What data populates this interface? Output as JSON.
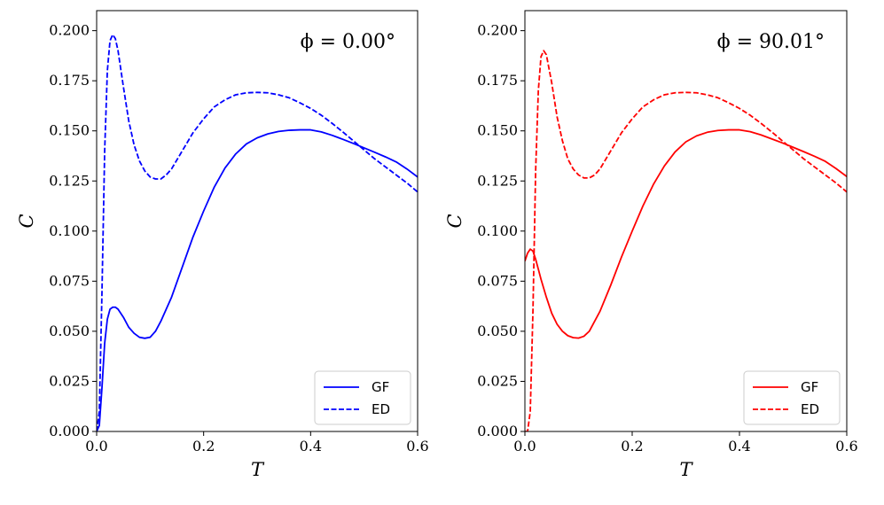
{
  "chart_data": [
    {
      "type": "line",
      "annotation": "ϕ = 0.00°",
      "xlabel": "T",
      "ylabel": "C",
      "xlim": [
        0.0,
        0.6
      ],
      "ylim": [
        0.0,
        0.21
      ],
      "xticks": [
        "0.0",
        "0.2",
        "0.4",
        "0.6"
      ],
      "yticks": [
        "0.000",
        "0.025",
        "0.050",
        "0.075",
        "0.100",
        "0.125",
        "0.150",
        "0.175",
        "0.200"
      ],
      "legend_position": "lower-right",
      "grid": false,
      "color": "#0000ff",
      "series": [
        {
          "name": "GF",
          "style": "solid",
          "x": [
            0.0,
            0.005,
            0.01,
            0.015,
            0.02,
            0.025,
            0.03,
            0.035,
            0.04,
            0.05,
            0.06,
            0.07,
            0.08,
            0.09,
            0.1,
            0.11,
            0.12,
            0.14,
            0.16,
            0.18,
            0.2,
            0.22,
            0.24,
            0.26,
            0.28,
            0.3,
            0.32,
            0.34,
            0.36,
            0.38,
            0.4,
            0.42,
            0.44,
            0.46,
            0.48,
            0.5,
            0.52,
            0.54,
            0.56,
            0.58,
            0.6
          ],
          "values": [
            0.0,
            0.003,
            0.022,
            0.044,
            0.056,
            0.061,
            0.062,
            0.062,
            0.061,
            0.057,
            0.052,
            0.049,
            0.047,
            0.0465,
            0.047,
            0.05,
            0.055,
            0.067,
            0.082,
            0.097,
            0.11,
            0.122,
            0.1315,
            0.1385,
            0.1435,
            0.1465,
            0.1485,
            0.1497,
            0.1503,
            0.1505,
            0.1505,
            0.1495,
            0.1478,
            0.1458,
            0.1437,
            0.1415,
            0.1393,
            0.137,
            0.1345,
            0.131,
            0.127
          ]
        },
        {
          "name": "ED",
          "style": "dashed",
          "x": [
            0.0,
            0.005,
            0.01,
            0.015,
            0.02,
            0.025,
            0.03,
            0.035,
            0.04,
            0.05,
            0.06,
            0.07,
            0.08,
            0.09,
            0.1,
            0.11,
            0.12,
            0.13,
            0.14,
            0.16,
            0.18,
            0.2,
            0.22,
            0.24,
            0.26,
            0.28,
            0.3,
            0.32,
            0.34,
            0.36,
            0.38,
            0.4,
            0.42,
            0.44,
            0.46,
            0.48,
            0.5,
            0.52,
            0.54,
            0.56,
            0.58,
            0.6
          ],
          "values": [
            0.0,
            0.01,
            0.07,
            0.14,
            0.18,
            0.195,
            0.198,
            0.196,
            0.19,
            0.172,
            0.155,
            0.143,
            0.135,
            0.13,
            0.127,
            0.126,
            0.126,
            0.128,
            0.131,
            0.14,
            0.149,
            0.156,
            0.162,
            0.1655,
            0.168,
            0.169,
            0.1692,
            0.169,
            0.168,
            0.1665,
            0.164,
            0.1612,
            0.1578,
            0.1538,
            0.1495,
            0.145,
            0.1405,
            0.136,
            0.132,
            0.128,
            0.124,
            0.1195
          ]
        }
      ]
    },
    {
      "type": "line",
      "annotation": "ϕ = 90.01°",
      "xlabel": "T",
      "ylabel": "C",
      "xlim": [
        0.0,
        0.6
      ],
      "ylim": [
        0.0,
        0.21
      ],
      "xticks": [
        "0.0",
        "0.2",
        "0.4",
        "0.6"
      ],
      "yticks": [
        "0.000",
        "0.025",
        "0.050",
        "0.075",
        "0.100",
        "0.125",
        "0.150",
        "0.175",
        "0.200"
      ],
      "legend_position": "lower-right",
      "grid": false,
      "color": "#ff0000",
      "series": [
        {
          "name": "GF",
          "style": "solid",
          "x": [
            0.0,
            0.005,
            0.01,
            0.015,
            0.02,
            0.025,
            0.03,
            0.04,
            0.05,
            0.06,
            0.07,
            0.08,
            0.09,
            0.1,
            0.11,
            0.12,
            0.14,
            0.16,
            0.18,
            0.2,
            0.22,
            0.24,
            0.26,
            0.28,
            0.3,
            0.32,
            0.34,
            0.36,
            0.38,
            0.4,
            0.42,
            0.44,
            0.46,
            0.48,
            0.5,
            0.52,
            0.54,
            0.56,
            0.58,
            0.6
          ],
          "values": [
            0.085,
            0.089,
            0.091,
            0.09,
            0.086,
            0.081,
            0.076,
            0.067,
            0.059,
            0.0535,
            0.05,
            0.0478,
            0.0468,
            0.0466,
            0.0475,
            0.05,
            0.06,
            0.073,
            0.087,
            0.1,
            0.1125,
            0.1235,
            0.1325,
            0.1395,
            0.1445,
            0.1475,
            0.1493,
            0.1502,
            0.1505,
            0.1505,
            0.1496,
            0.148,
            0.146,
            0.144,
            0.1418,
            0.1396,
            0.1373,
            0.1348,
            0.1312,
            0.1272
          ]
        },
        {
          "name": "ED",
          "style": "dashed",
          "x": [
            0.0,
            0.005,
            0.01,
            0.015,
            0.02,
            0.025,
            0.03,
            0.035,
            0.04,
            0.05,
            0.06,
            0.07,
            0.08,
            0.09,
            0.1,
            0.11,
            0.12,
            0.13,
            0.14,
            0.16,
            0.18,
            0.2,
            0.22,
            0.24,
            0.26,
            0.28,
            0.3,
            0.32,
            0.34,
            0.36,
            0.38,
            0.4,
            0.42,
            0.44,
            0.46,
            0.48,
            0.5,
            0.52,
            0.54,
            0.56,
            0.58,
            0.6
          ],
          "values": [
            0.0,
            0.0,
            0.01,
            0.06,
            0.13,
            0.17,
            0.187,
            0.19,
            0.188,
            0.174,
            0.157,
            0.145,
            0.136,
            0.131,
            0.128,
            0.1265,
            0.1265,
            0.128,
            0.131,
            0.14,
            0.149,
            0.156,
            0.162,
            0.1655,
            0.168,
            0.169,
            0.1692,
            0.169,
            0.168,
            0.1665,
            0.164,
            0.1612,
            0.1578,
            0.1538,
            0.1495,
            0.145,
            0.1405,
            0.136,
            0.132,
            0.128,
            0.124,
            0.1195
          ]
        }
      ]
    }
  ]
}
